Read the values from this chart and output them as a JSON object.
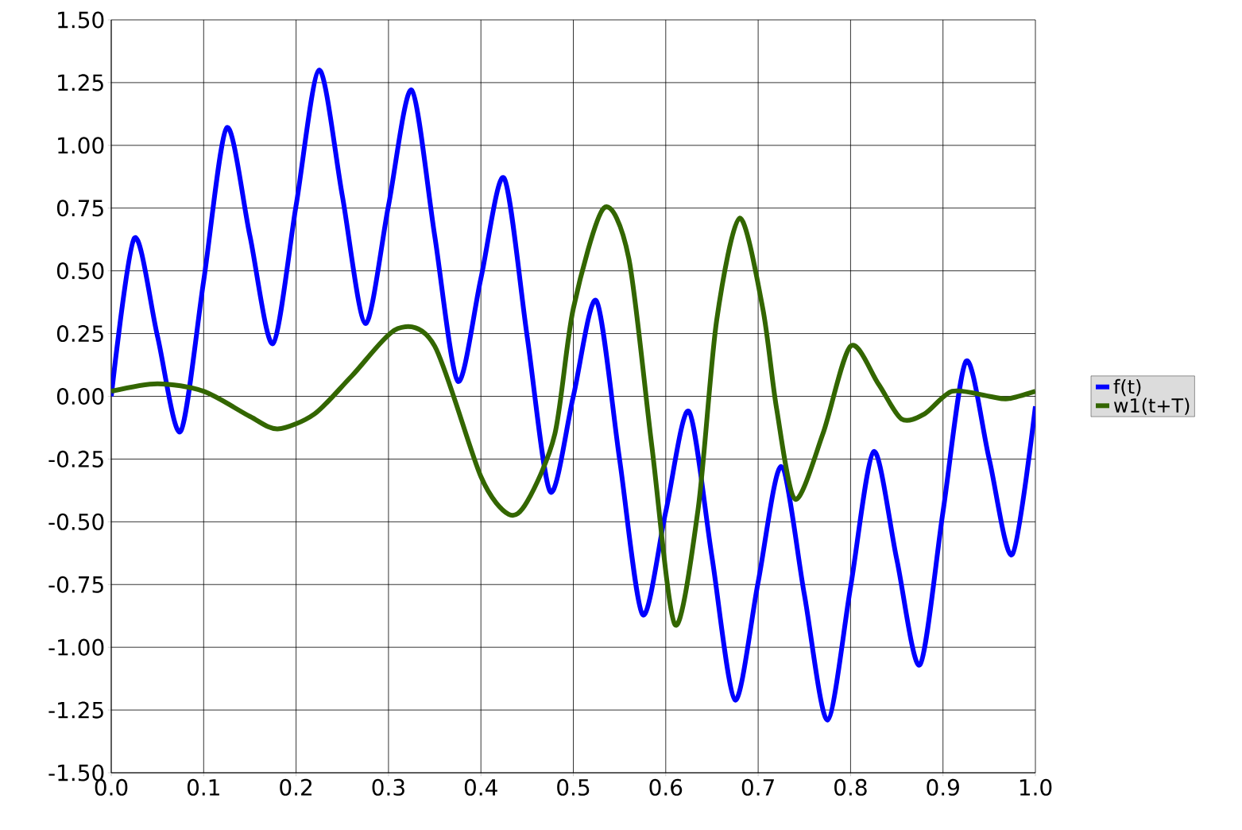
{
  "chart_data": {
    "type": "line",
    "xlim": [
      0,
      1
    ],
    "xticks": [
      {
        "value": 0,
        "label": "0.0"
      },
      {
        "value": 0.1,
        "label": "0.1"
      },
      {
        "value": 0.2,
        "label": "0.2"
      },
      {
        "value": 0.3,
        "label": "0.3"
      },
      {
        "value": 0.4,
        "label": "0.4"
      },
      {
        "value": 0.5,
        "label": "0.5"
      },
      {
        "value": 0.6,
        "label": "0.6"
      },
      {
        "value": 0.7,
        "label": "0.7"
      },
      {
        "value": 0.8,
        "label": "0.8"
      },
      {
        "value": 0.9,
        "label": "0.9"
      },
      {
        "value": 1,
        "label": "1.0"
      }
    ],
    "ylim": [
      -1.5,
      1.5
    ],
    "yticks": [
      {
        "value": -1.5,
        "label": "-1.50"
      },
      {
        "value": -1.25,
        "label": "-1.25"
      },
      {
        "value": -1,
        "label": "-1.00"
      },
      {
        "value": -0.75,
        "label": "-0.75"
      },
      {
        "value": -0.5,
        "label": "-0.50"
      },
      {
        "value": -0.25,
        "label": "-0.25"
      },
      {
        "value": 0,
        "label": "0.00"
      },
      {
        "value": 0.25,
        "label": "0.25"
      },
      {
        "value": 0.5,
        "label": "0.50"
      },
      {
        "value": 0.75,
        "label": "0.75"
      },
      {
        "value": 1,
        "label": "1.00"
      },
      {
        "value": 1.25,
        "label": "1.25"
      },
      {
        "value": 1.5,
        "label": "1.50"
      }
    ],
    "grid": true,
    "legend": "right",
    "marker": "none",
    "line_style": "solid",
    "series": [
      {
        "name": "f(t)",
        "color": "#0000ff",
        "x": [
          0,
          0.025,
          0.05,
          0.075,
          0.1,
          0.125,
          0.15,
          0.175,
          0.2,
          0.225,
          0.25,
          0.275,
          0.3,
          0.325,
          0.35,
          0.375,
          0.4,
          0.425,
          0.45,
          0.475,
          0.5,
          0.525,
          0.55,
          0.575,
          0.6,
          0.625,
          0.65,
          0.675,
          0.7,
          0.725,
          0.75,
          0.775,
          0.8,
          0.825,
          0.85,
          0.875,
          0.9,
          0.925,
          0.95,
          0.975,
          1.0
        ],
        "values": [
          0,
          0.63,
          0.24,
          -0.14,
          0.46,
          1.07,
          0.64,
          0.21,
          0.76,
          1.3,
          0.8,
          0.29,
          0.76,
          1.22,
          0.64,
          0.06,
          0.47,
          0.87,
          0.24,
          -0.38,
          0.0,
          0.38,
          -0.25,
          -0.87,
          -0.46,
          -0.06,
          -0.64,
          -1.21,
          -0.74,
          -0.28,
          -0.79,
          -1.29,
          -0.76,
          -0.22,
          -0.65,
          -1.07,
          -0.46,
          0.14,
          -0.25,
          -0.63,
          -0.04
        ]
      },
      {
        "name": "w1(t+T)",
        "color": "#336600",
        "x": [
          0,
          0.05,
          0.1,
          0.15,
          0.18,
          0.22,
          0.26,
          0.31,
          0.35,
          0.4,
          0.43,
          0.45,
          0.48,
          0.5,
          0.533,
          0.56,
          0.585,
          0.61,
          0.635,
          0.655,
          0.68,
          0.705,
          0.72,
          0.74,
          0.77,
          0.8,
          0.83,
          0.855,
          0.88,
          0.91,
          0.95,
          0.97,
          1.0
        ],
        "values": [
          0.02,
          0.05,
          0.02,
          -0.08,
          -0.13,
          -0.07,
          0.08,
          0.27,
          0.2,
          -0.32,
          -0.47,
          -0.42,
          -0.15,
          0.35,
          0.75,
          0.55,
          -0.2,
          -0.91,
          -0.45,
          0.3,
          0.71,
          0.35,
          -0.05,
          -0.41,
          -0.15,
          0.2,
          0.05,
          -0.09,
          -0.07,
          0.02,
          0.0,
          -0.01,
          0.02
        ]
      }
    ]
  }
}
